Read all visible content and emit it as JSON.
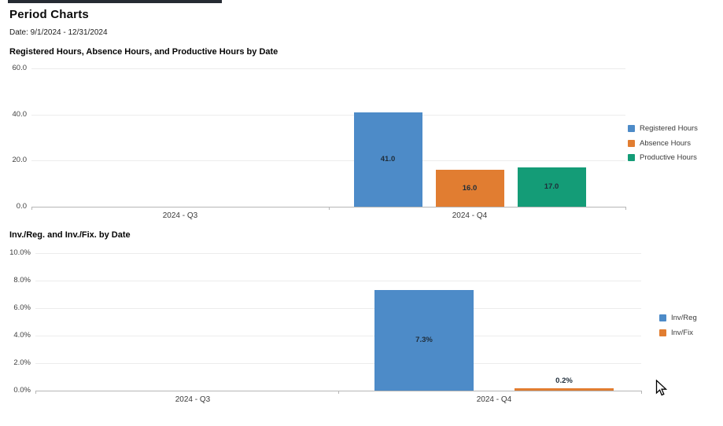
{
  "page": {
    "title": "Period Charts",
    "date_range": "Date: 9/1/2024 - 12/31/2024"
  },
  "colors": {
    "blue": "#4d8bc8",
    "orange": "#e17d31",
    "green": "#149c77",
    "grid": "#ececec",
    "axis": "#b6b6b6"
  },
  "chart_data": [
    {
      "type": "bar",
      "title": "Registered Hours, Absence Hours, and Productive Hours by Date",
      "categories": [
        "2024 - Q3",
        "2024 - Q4"
      ],
      "series": [
        {
          "name": "Registered Hours",
          "color": "#4d8bc8",
          "values": [
            null,
            41.0
          ],
          "value_labels": [
            null,
            "41.0"
          ]
        },
        {
          "name": "Absence Hours",
          "color": "#e17d31",
          "values": [
            null,
            16.0
          ],
          "value_labels": [
            null,
            "16.0"
          ]
        },
        {
          "name": "Productive Hours",
          "color": "#149c77",
          "values": [
            null,
            17.0
          ],
          "value_labels": [
            null,
            "17.0"
          ]
        }
      ],
      "ylim": [
        0,
        60
      ],
      "y_tick_labels": [
        "60.0",
        "40.0",
        "20.0",
        "0.0"
      ],
      "grid": true,
      "legend_position": "right"
    },
    {
      "type": "bar",
      "title": "Inv./Reg. and Inv./Fix. by Date",
      "categories": [
        "2024 - Q3",
        "2024 - Q4"
      ],
      "series": [
        {
          "name": "Inv/Reg",
          "color": "#4d8bc8",
          "values": [
            null,
            7.3
          ],
          "value_labels": [
            null,
            "7.3%"
          ]
        },
        {
          "name": "Inv/Fix",
          "color": "#e17d31",
          "values": [
            null,
            0.2
          ],
          "value_labels": [
            null,
            "0.2%"
          ]
        }
      ],
      "ylim": [
        0,
        10
      ],
      "y_tick_labels": [
        "10.0%",
        "8.0%",
        "6.0%",
        "4.0%",
        "2.0%",
        "0.0%"
      ],
      "grid": true,
      "legend_position": "right"
    }
  ]
}
